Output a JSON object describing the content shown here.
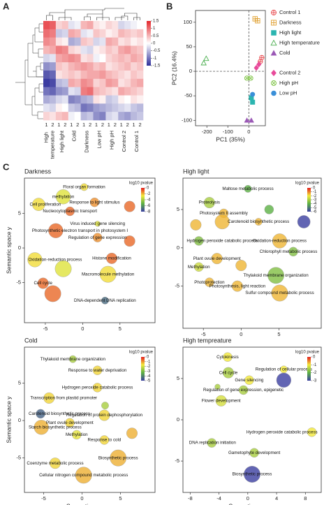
{
  "panel_labels": [
    "A",
    "B",
    "C"
  ],
  "chart_data": [
    {
      "type": "heatmap",
      "groups": [
        "High temperature",
        "High light",
        "Cold",
        "Darkness",
        "Low pH",
        "High pH",
        "Control 2",
        "Control 1"
      ],
      "replicate_labels": [
        "1",
        "2"
      ],
      "values": [
        [
          1.2,
          1.1,
          0.3,
          0.4,
          -0.2,
          -0.1,
          0.5,
          0.6,
          0.2,
          0.1,
          0.3,
          0.2,
          -0.3,
          -0.2,
          -0.1,
          0.0
        ],
        [
          1.0,
          0.9,
          -0.4,
          -0.3,
          0.6,
          0.5,
          -0.2,
          -0.1,
          0.4,
          0.3,
          0.1,
          0.2,
          0.5,
          0.4,
          0.3,
          0.4
        ],
        [
          0.8,
          0.7,
          0.2,
          0.1,
          -0.6,
          -0.5,
          0.4,
          0.3,
          -0.3,
          -0.2,
          0.6,
          0.5,
          0.2,
          0.3,
          0.1,
          0.2
        ],
        [
          0.5,
          0.6,
          0.9,
          0.8,
          0.3,
          0.2,
          -0.2,
          -0.3,
          0.1,
          0.2,
          0.4,
          0.3,
          0.6,
          0.7,
          0.5,
          0.4
        ],
        [
          -0.3,
          -0.2,
          0.6,
          0.7,
          0.8,
          0.7,
          0.2,
          0.3,
          -0.1,
          0.0,
          0.3,
          0.4,
          0.5,
          0.4,
          0.6,
          0.5
        ],
        [
          -0.8,
          -0.7,
          0.4,
          0.3,
          0.5,
          0.6,
          0.7,
          0.6,
          0.4,
          0.5,
          0.2,
          0.3,
          0.4,
          0.5,
          0.3,
          0.4
        ],
        [
          -1.2,
          -1.1,
          0.2,
          0.3,
          0.4,
          0.3,
          0.5,
          0.6,
          0.6,
          0.7,
          0.5,
          0.4,
          0.3,
          0.2,
          0.4,
          0.3
        ],
        [
          -1.4,
          -1.3,
          -0.5,
          -0.4,
          0.6,
          0.5,
          0.8,
          0.7,
          0.3,
          0.4,
          0.7,
          0.6,
          0.2,
          0.3,
          0.5,
          0.6
        ],
        [
          -1.0,
          -1.1,
          -0.8,
          -0.7,
          -0.2,
          -0.3,
          0.9,
          1.0,
          0.5,
          0.4,
          0.3,
          0.2,
          0.6,
          0.5,
          0.4,
          0.3
        ],
        [
          -0.6,
          -0.5,
          -0.3,
          -0.2,
          -0.9,
          -0.8,
          -0.6,
          -0.5,
          0.2,
          0.1,
          -0.4,
          -0.3,
          0.1,
          0.0,
          0.2,
          0.1
        ],
        [
          -0.2,
          -0.3,
          0.1,
          0.0,
          -0.4,
          -0.5,
          -1.0,
          -0.9,
          -0.7,
          -0.6,
          -0.5,
          -0.4,
          -0.3,
          -0.2,
          -0.4,
          -0.5
        ],
        [
          0.3,
          0.2,
          0.4,
          0.5,
          -0.1,
          0.0,
          -0.5,
          -0.4,
          -0.8,
          -0.9,
          -0.3,
          -0.2,
          -0.6,
          -0.7,
          -0.5,
          -0.4
        ]
      ],
      "colors": [
        "#2e2e9a",
        "#ffffff",
        "#e3262b"
      ],
      "zlim": [
        -1.5,
        1.5
      ],
      "zticks": [
        1.5,
        1,
        0.5,
        0,
        -0.5,
        -1,
        -1.5
      ]
    },
    {
      "type": "scatter",
      "xlabel": "PC1 (35%)",
      "ylabel": "PC2 (16.4%)",
      "xlim": [
        -254,
        79
      ],
      "ylim": [
        -111,
        124
      ],
      "xticks": [
        -200,
        -100,
        0
      ],
      "yticks": [
        -100,
        -50,
        0,
        50,
        100
      ],
      "hline": 0,
      "vline": 0,
      "series": [
        {
          "name": "Control 1",
          "color": "#e8474c",
          "marker": "circle-plus",
          "x": [
            55,
            62
          ],
          "y": [
            20,
            28
          ]
        },
        {
          "name": "Darkness",
          "color": "#e0a030",
          "marker": "square-plus",
          "x": [
            30,
            42
          ],
          "y": [
            107,
            103
          ]
        },
        {
          "name": "High light",
          "color": "#2bb5b0",
          "marker": "square",
          "x": [
            12,
            18
          ],
          "y": [
            -54,
            -63
          ]
        },
        {
          "name": "High temperature",
          "color": "#4caf50",
          "marker": "triangle-open",
          "x": [
            -215,
            -203
          ],
          "y": [
            17,
            26
          ]
        },
        {
          "name": "Cold",
          "color": "#9b59b6",
          "marker": "triangle",
          "x": [
            -9,
            12
          ],
          "y": [
            -100,
            -100
          ]
        },
        {
          "name": "Control 2",
          "color": "#e84a9a",
          "marker": "diamond",
          "x": [
            36,
            48
          ],
          "y": [
            7,
            14
          ]
        },
        {
          "name": "High pH",
          "color": "#7cc242",
          "marker": "circle-x",
          "x": [
            -9,
            9
          ],
          "y": [
            -14,
            -14
          ]
        },
        {
          "name": "Low pH",
          "color": "#3a8fd8",
          "marker": "circle",
          "x": [
            18
          ],
          "y": [
            -47
          ]
        }
      ]
    },
    {
      "type": "bubble",
      "title": "Darkness",
      "ylabel": "Semantic space y",
      "xlim": [
        -7.8,
        9.7
      ],
      "ylim": [
        -10.8,
        10.1
      ],
      "xticks": [
        -5,
        0,
        5
      ],
      "yticks": [
        -5,
        0,
        5
      ],
      "colorbar_title": "log10 pvalue",
      "clim": [
        -8,
        0
      ],
      "cticks": [
        0,
        -2,
        -4,
        -6,
        -8
      ],
      "colorscale": [
        "#e41a1c",
        "#f2e93a",
        "#5bb044",
        "#3b3fa0"
      ],
      "x": [
        -2.6,
        0.2,
        -5.9,
        1.6,
        6.3,
        -1.7,
        2.0,
        -3.6,
        2.0,
        6.3,
        -6.4,
        3.9,
        -2.6,
        3.4,
        -5.3,
        -4.0,
        3.0
      ],
      "y": [
        7.4,
        8.8,
        6.3,
        6.6,
        6.0,
        5.3,
        3.5,
        2.5,
        1.5,
        1.0,
        -1.7,
        -1.5,
        -3.0,
        -3.8,
        -5.1,
        -6.6,
        -7.6
      ],
      "size": [
        4,
        2,
        3.5,
        2.5,
        3,
        2.5,
        1.5,
        4,
        2.5,
        3,
        4,
        3,
        4.5,
        4.5,
        3,
        4.5,
        2
      ],
      "pvalue": [
        -3,
        -2.5,
        -2.5,
        -1.5,
        -1,
        -1,
        -3,
        -1,
        -1.5,
        -1,
        -2.5,
        -1,
        -3,
        -2.5,
        -1,
        -1,
        -7
      ],
      "labels": [
        "methylation",
        "Floral organ formation",
        "Cell proliferation",
        "Response to light stimulus",
        null,
        "Nucleocytoplasmic transport",
        "Virus induced gene silencing",
        "Photosynthetic electron transport in photosystem I",
        "Regulation of gene expression",
        null,
        "Oxidation-reduction process",
        "Histone modification",
        null,
        "Macromolecule methylation",
        "Cell cycle",
        null,
        "DNA-dependent DNA replication"
      ]
    },
    {
      "type": "bubble",
      "title": "High light",
      "xlim": [
        -7.7,
        10.6
      ],
      "ylim": [
        -10.5,
        9.1
      ],
      "xticks": [
        -5,
        0,
        5
      ],
      "yticks": [
        -5,
        0,
        5
      ],
      "colorbar_title": "log10 pvalue",
      "clim": [
        -6,
        0
      ],
      "cticks": [
        0,
        -1,
        -2,
        -3,
        -4,
        -5,
        -6
      ],
      "colorscale": [
        "#e41a1c",
        "#f2e93a",
        "#5bb044",
        "#3b3fa0"
      ],
      "x": [
        -4.2,
        -2.3,
        0.9,
        3.7,
        2.3,
        8.3,
        -6.0,
        -2.5,
        -5.6,
        5.1,
        6.9,
        -3.2,
        -5.6,
        4.6,
        -4.2,
        -0.5,
        5.1,
        0.0
      ],
      "y": [
        5.9,
        4.5,
        7.7,
        5.0,
        3.4,
        3.4,
        3.0,
        3.4,
        0.9,
        0.9,
        -0.5,
        -1.4,
        -2.5,
        -3.6,
        -4.5,
        -5.0,
        -5.9,
        -2.3
      ],
      "size": [
        3,
        2.5,
        2,
        2.5,
        2,
        3.5,
        3,
        4,
        2.5,
        4,
        2.5,
        3,
        2.5,
        4.5,
        2.5,
        3,
        4.5,
        3
      ],
      "pvalue": [
        -3,
        -1.5,
        -4,
        -4,
        -1.5,
        -6,
        -1.5,
        -1.5,
        -3.5,
        -1.5,
        -3.5,
        -1.5,
        -2.5,
        -3.5,
        -1.5,
        -1.5,
        -1.5,
        -1.5
      ],
      "labels": [
        "Proteolysis",
        "Photosystem II assembly",
        "Maltose metabolic process",
        null,
        "Carotenoid biosynthetic process",
        null,
        null,
        null,
        "Hydrogen peroxide catabolic process",
        "Oxidation-reduction process",
        "Chlorophyll metabolic process",
        "Plant ovule development",
        "Methylation",
        "Thylakoid membrane organization",
        "Photoprotection",
        "Photosynthesis, light reaction",
        "Sulfur compound metabolic process",
        null
      ]
    },
    {
      "type": "bubble",
      "title": "Cold",
      "xlabel": "Semantic space x",
      "ylabel": "Semantic space y",
      "xlim": [
        -7.5,
        9.5
      ],
      "ylim": [
        -9.6,
        9.8
      ],
      "xticks": [
        -5,
        0,
        5
      ],
      "yticks": [
        -5,
        0,
        5
      ],
      "colorbar_title": "log10 pvalue",
      "clim": [
        -5,
        0
      ],
      "cticks": [
        0,
        -1,
        -2,
        -3,
        -4,
        -5
      ],
      "colorscale": [
        "#e41a1c",
        "#f2e93a",
        "#5bb044",
        "#3b3fa0"
      ],
      "x": [
        -1.2,
        2.0,
        2.0,
        -4.3,
        3.0,
        -5.4,
        2.9,
        -1.6,
        -5.3,
        -0.7,
        2.9,
        6.5,
        4.7,
        -3.5,
        0.2
      ],
      "y": [
        8.2,
        6.7,
        4.4,
        3.0,
        2.0,
        0.9,
        0.7,
        -0.3,
        -0.9,
        -1.9,
        -2.6,
        -1.7,
        -5.0,
        -5.7,
        -7.3
      ],
      "size": [
        2,
        2.5,
        2.5,
        3,
        2,
        2.5,
        3,
        2.5,
        4,
        2.5,
        2.5,
        3,
        4.5,
        3,
        4.5
      ],
      "pvalue": [
        -2.5,
        -1.5,
        -1.5,
        -1.5,
        -2.5,
        -4.5,
        -1.5,
        -1.5,
        -1.2,
        -1.8,
        -1.5,
        -1.2,
        -1.2,
        -1.5,
        -1.2
      ],
      "labels": [
        "Thylakoid membrane organization",
        "Response to water deprivation",
        "Hydrogen peroxide catabolic process",
        "Transcription from plastid promoter",
        null,
        "Carotenoid biosynthetic process",
        "Regulation of protein dephosphorylation",
        "Plant ovule development",
        "Starch biosynthetic process",
        "Methylation",
        "Response to cold",
        null,
        "Biosynthetic process",
        "Coenzyme metabolic process",
        "Cellular nitrogen compound metabolic process"
      ]
    },
    {
      "type": "bubble",
      "title": "High tempreature",
      "xlabel": "Semantic space x",
      "xlim": [
        -9,
        10.2
      ],
      "ylim": [
        -8.8,
        8.8
      ],
      "xticks": [
        -8,
        -4,
        0,
        4,
        8
      ],
      "yticks": [
        -5,
        0,
        5
      ],
      "colorbar_title": "log10 pvalue",
      "clim": [
        -3,
        0
      ],
      "cticks": [
        0,
        -1,
        -2,
        -3
      ],
      "colorscale": [
        "#e41a1c",
        "#f2e93a",
        "#5bb044",
        "#3b3fa0"
      ],
      "x": [
        -2.8,
        -2.7,
        5.0,
        0.2,
        5.0,
        -0.6,
        -4.2,
        -3.7,
        8.9,
        -5.0,
        0.9,
        0.6
      ],
      "y": [
        7.6,
        5.7,
        6.1,
        4.8,
        4.8,
        3.6,
        4.0,
        2.3,
        -1.5,
        -2.8,
        -4.0,
        -6.6
      ],
      "size": [
        2.5,
        3,
        2,
        2.5,
        4,
        2.5,
        1.5,
        3,
        2.5,
        2.5,
        2.5,
        4.5
      ],
      "pvalue": [
        -1,
        -1.5,
        -1,
        -1,
        -3,
        -1.5,
        -1.5,
        -1.2,
        -1,
        -1.5,
        -1.5,
        -3
      ],
      "labels": [
        "Cytokinesis",
        "Cell cycle",
        "Regulation of cellular process",
        "Gene silencing",
        null,
        "Regulation of gene expression, epigenetic",
        null,
        "Flower development",
        "Hydrogen peroxide catabolic process",
        "DNA replication initiation",
        "Gametophyte development",
        "Biosynthetic process"
      ]
    }
  ]
}
